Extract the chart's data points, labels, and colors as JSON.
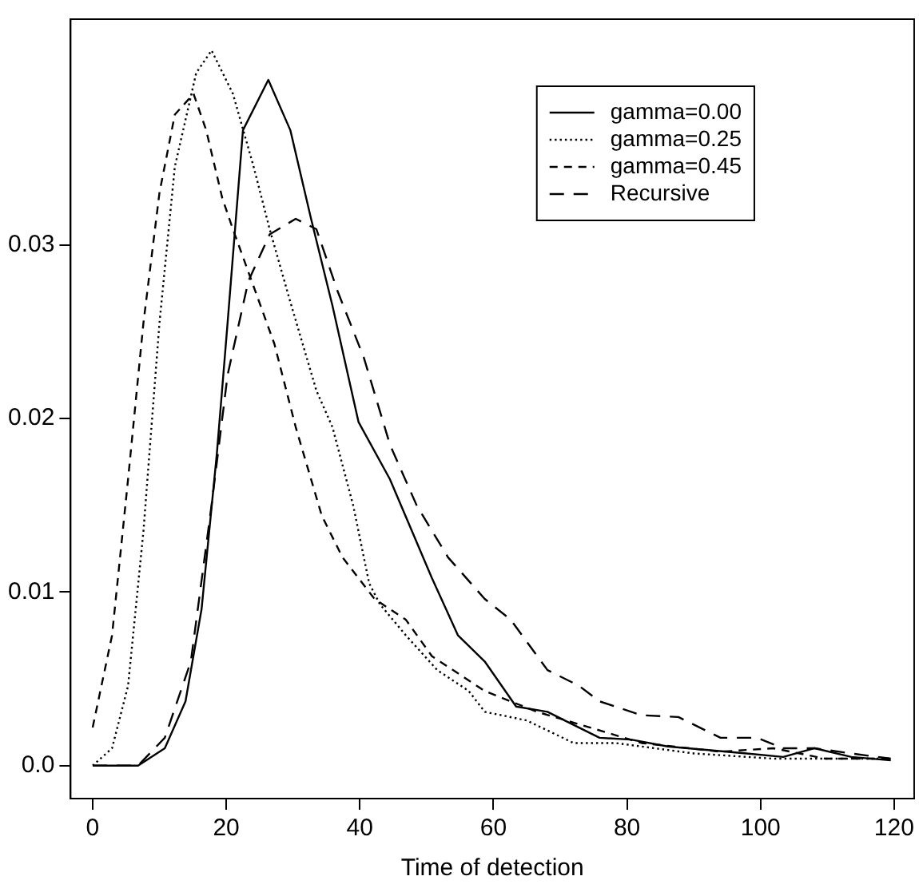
{
  "chart_data": {
    "type": "line",
    "xlabel": "Time of detection",
    "xlim": [
      -3.3,
      123
    ],
    "ylim": [
      -0.0019,
      0.043
    ],
    "xticks": [
      0,
      20,
      40,
      60,
      80,
      100,
      120
    ],
    "yticks": [
      {
        "value": 0,
        "label": "0.0"
      },
      0.01,
      0.02,
      0.03
    ],
    "grid": false,
    "legend": "top right",
    "marker": "none",
    "series": [
      {
        "name": "gamma=0.00",
        "color": "#000000",
        "line_style": "solid",
        "x": [
          0,
          6.8,
          10.8,
          13.9,
          16.3,
          18.6,
          20.2,
          22.5,
          26.3,
          29.6,
          32.7,
          35.9,
          39.8,
          44.5,
          50.8,
          54.7,
          58.7,
          63.4,
          68.1,
          71.2,
          75.9,
          80.6,
          86.1,
          97.9,
          103.4,
          108.1,
          113.6,
          119.5
        ],
        "values": [
          0,
          0,
          0.001,
          0.0037,
          0.009,
          0.018,
          0.0255,
          0.0366,
          0.0395,
          0.0366,
          0.0315,
          0.0265,
          0.0198,
          0.0165,
          0.0108,
          0.0075,
          0.006,
          0.0034,
          0.0031,
          0.0025,
          0.0016,
          0.0015,
          0.0011,
          0.0007,
          0.0005,
          0.001,
          0.0005,
          0.0003
        ]
      },
      {
        "name": "gamma=0.25",
        "color": "#000000",
        "line_style": "dotted",
        "x": [
          0,
          2.9,
          5.3,
          7.6,
          10,
          12.3,
          15.5,
          17.8,
          21,
          24.1,
          26.5,
          29.6,
          33.5,
          35.9,
          39,
          41.4,
          43,
          46.9,
          51.6,
          56.3,
          58.7,
          65,
          72,
          78.3,
          90,
          101.9,
          113.6,
          119.5
        ],
        "values": [
          0,
          0.001,
          0.0046,
          0.0135,
          0.0255,
          0.0345,
          0.0399,
          0.0412,
          0.0387,
          0.0345,
          0.0309,
          0.0267,
          0.0216,
          0.0195,
          0.015,
          0.0105,
          0.0093,
          0.0075,
          0.0055,
          0.0043,
          0.0031,
          0.0026,
          0.0013,
          0.0013,
          0.0007,
          0.0004,
          0.0004,
          0.0004
        ]
      },
      {
        "name": "gamma=0.45",
        "color": "#000000",
        "line_style": "dashed",
        "x": [
          0,
          2.9,
          5.3,
          7.6,
          10,
          12.3,
          15.1,
          17,
          19.4,
          21,
          24.1,
          27.2,
          30.4,
          34.3,
          37.4,
          42.2,
          46.9,
          50.8,
          58.7,
          66.5,
          74.4,
          82.2,
          94,
          101.9,
          109.7,
          119.5
        ],
        "values": [
          0.0022,
          0.0075,
          0.0165,
          0.0255,
          0.033,
          0.0375,
          0.0387,
          0.0366,
          0.0327,
          0.0309,
          0.0276,
          0.0243,
          0.0195,
          0.0144,
          0.012,
          0.0096,
          0.0084,
          0.0063,
          0.0043,
          0.0031,
          0.0022,
          0.0013,
          0.0008,
          0.001,
          0.0004,
          0.0004
        ]
      },
      {
        "name": "Recursive",
        "color": "#000000",
        "line_style": "dashed",
        "x": [
          0,
          6.8,
          10.8,
          14.7,
          17.8,
          20.2,
          23.3,
          26.5,
          30.4,
          33.5,
          36.7,
          40.6,
          44.5,
          48.5,
          53.2,
          58.7,
          62.6,
          68.1,
          72.8,
          75.9,
          82.2,
          87.7,
          94,
          99.5,
          103.4,
          108.1,
          113.6,
          119.5
        ],
        "values": [
          0,
          0,
          0.0016,
          0.006,
          0.015,
          0.0225,
          0.0279,
          0.0306,
          0.0315,
          0.0309,
          0.0273,
          0.0235,
          0.0185,
          0.015,
          0.012,
          0.0096,
          0.0084,
          0.0055,
          0.0046,
          0.0037,
          0.0029,
          0.0028,
          0.0016,
          0.0016,
          0.001,
          0.001,
          0.0007,
          0.0004
        ]
      }
    ]
  }
}
